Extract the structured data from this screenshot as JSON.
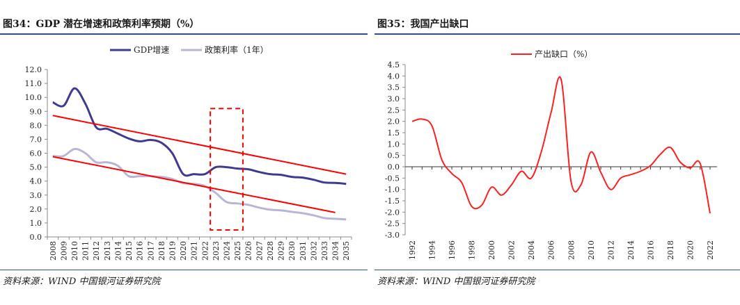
{
  "left": {
    "title": "图34：GDP 潜在增速和政策利率预期（%）",
    "source": "资料来源：WIND  中国银河证券研究院"
  },
  "right": {
    "title": "图35：我国产出缺口",
    "source": "资料来源：WIND  中国银河证券研究院"
  },
  "colors": {
    "gdp": "#3f3a92",
    "policy": "#b8b6d6",
    "trend": "#ff0000",
    "gap": "#ff1f1f",
    "title_rule": "#2e4f8f"
  },
  "chart_data": [
    {
      "type": "line",
      "title": "",
      "xlabel": "",
      "ylabel": "",
      "categories": [
        "2008",
        "2009",
        "2010",
        "2011",
        "2012",
        "2013",
        "2014",
        "2015",
        "2016",
        "2017",
        "2018",
        "2019",
        "2020",
        "2021",
        "2022",
        "2023",
        "2024",
        "2025",
        "2026",
        "2027",
        "2028",
        "2029",
        "2030",
        "2031",
        "2032",
        "2033",
        "2034",
        "2035"
      ],
      "ylim": [
        0,
        12
      ],
      "yticks": [
        "0.0",
        "1.0",
        "2.0",
        "3.0",
        "4.0",
        "5.0",
        "6.0",
        "7.0",
        "8.0",
        "9.0",
        "10.0",
        "11.0",
        "12.0"
      ],
      "legend_position": "top-center",
      "series": [
        {
          "name": "GDP增速",
          "values": [
            9.65,
            9.4,
            10.65,
            9.55,
            7.85,
            7.75,
            7.4,
            7.05,
            6.85,
            6.95,
            6.75,
            6.0,
            4.5,
            4.5,
            4.5,
            5.0,
            5.0,
            4.9,
            4.85,
            4.65,
            4.5,
            4.45,
            4.3,
            4.25,
            4.1,
            3.9,
            3.87,
            3.8
          ]
        },
        {
          "name": "政策利率（1年）",
          "values": [
            5.8,
            5.8,
            6.3,
            6.0,
            5.35,
            5.35,
            5.1,
            4.35,
            4.35,
            4.35,
            4.3,
            4.15,
            3.85,
            3.8,
            3.65,
            3.15,
            2.5,
            2.4,
            2.3,
            2.1,
            1.95,
            1.9,
            1.8,
            1.7,
            1.55,
            1.35,
            1.3,
            1.25
          ]
        }
      ],
      "trend_lines": [
        {
          "from": [
            "2008",
            8.7
          ],
          "to": [
            "2035",
            4.5
          ]
        },
        {
          "from": [
            "2008",
            5.75
          ],
          "to": [
            "2034",
            1.75
          ]
        }
      ],
      "highlight_box": {
        "from": "2023",
        "to": "2025",
        "ylim": [
          0.5,
          9.2
        ]
      }
    },
    {
      "type": "line",
      "title": "",
      "xlabel": "",
      "ylabel": "",
      "x": [
        1992,
        1993,
        1994,
        1995,
        1996,
        1997,
        1998,
        1999,
        2000,
        2001,
        2002,
        2003,
        2004,
        2005,
        2006,
        2007,
        2008,
        2009,
        2010,
        2011,
        2012,
        2013,
        2014,
        2015,
        2016,
        2017,
        2018,
        2019,
        2020,
        2021,
        2022
      ],
      "xticks": [
        "1992",
        "1994",
        "1996",
        "1998",
        "2000",
        "2002",
        "2004",
        "2006",
        "2008",
        "2010",
        "2012",
        "2014",
        "2016",
        "2018",
        "2020",
        "2022"
      ],
      "ylim": [
        -3.0,
        4.5
      ],
      "yticks": [
        "4.5",
        "4.0",
        "3.5",
        "3.0",
        "2.5",
        "2.0",
        "1.5",
        "1.0",
        "0.5",
        "0.0",
        "-0.5",
        "-1.0",
        "-1.5",
        "-2.0",
        "-2.5",
        "-3.0"
      ],
      "legend_position": "top-center",
      "series": [
        {
          "name": "产出缺口（%）",
          "values": [
            2.0,
            2.1,
            1.8,
            0.3,
            -0.3,
            -0.7,
            -1.75,
            -1.7,
            -0.9,
            -1.25,
            -0.8,
            -0.2,
            -0.5,
            0.65,
            2.4,
            3.85,
            -0.65,
            -0.8,
            0.65,
            -0.25,
            -1.0,
            -0.5,
            -0.35,
            -0.2,
            0.05,
            0.55,
            0.85,
            0.2,
            -0.05,
            0.15,
            -2.05
          ]
        }
      ]
    }
  ]
}
